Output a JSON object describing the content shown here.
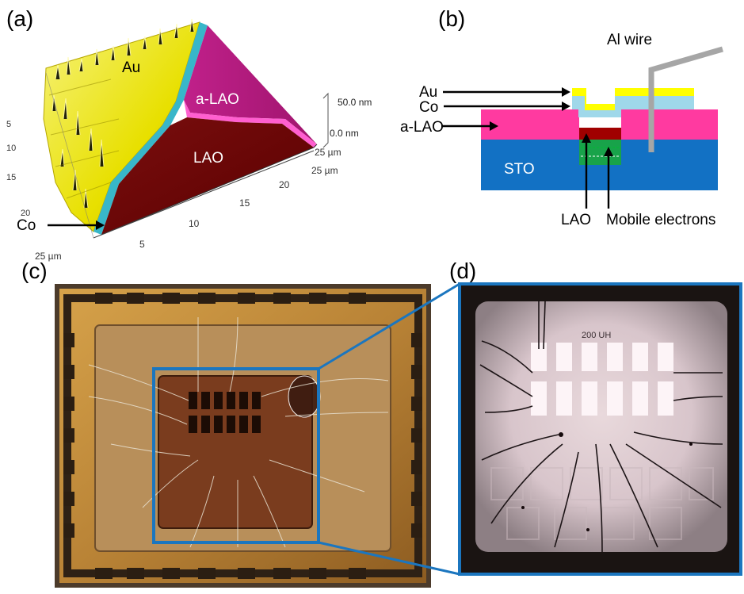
{
  "panels": {
    "a": {
      "label": "(a)",
      "regions": {
        "au": "Au",
        "alao": "a-LAO",
        "lao": "LAO",
        "co": "Co"
      },
      "z_ticks": [
        "50.0 nm",
        "0.0 nm"
      ],
      "y_ticks": [
        "5",
        "10",
        "15",
        "20",
        "25 µm"
      ],
      "x_ticks": [
        "5",
        "10",
        "15",
        "20",
        "25 µm"
      ],
      "x_end": "25 µm"
    },
    "b": {
      "label": "(b)",
      "layers": {
        "au": "Au",
        "co": "Co",
        "alao": "a-LAO",
        "sto": "STO",
        "lao": "LAO"
      },
      "wire": "Al wire",
      "mobile": "Mobile electrons"
    },
    "c": {
      "label": "(c)"
    },
    "d": {
      "label": "(d)",
      "scale_text": "200 UH"
    }
  },
  "colors": {
    "au": "#ffff00",
    "co": "#9fd8ea",
    "alao": "#ff3aa0",
    "lao": "#a00000",
    "sto": "#1271c4",
    "mobile": "#18a34a",
    "wire": "#a6a6a6",
    "callout": "#1b76bf"
  }
}
